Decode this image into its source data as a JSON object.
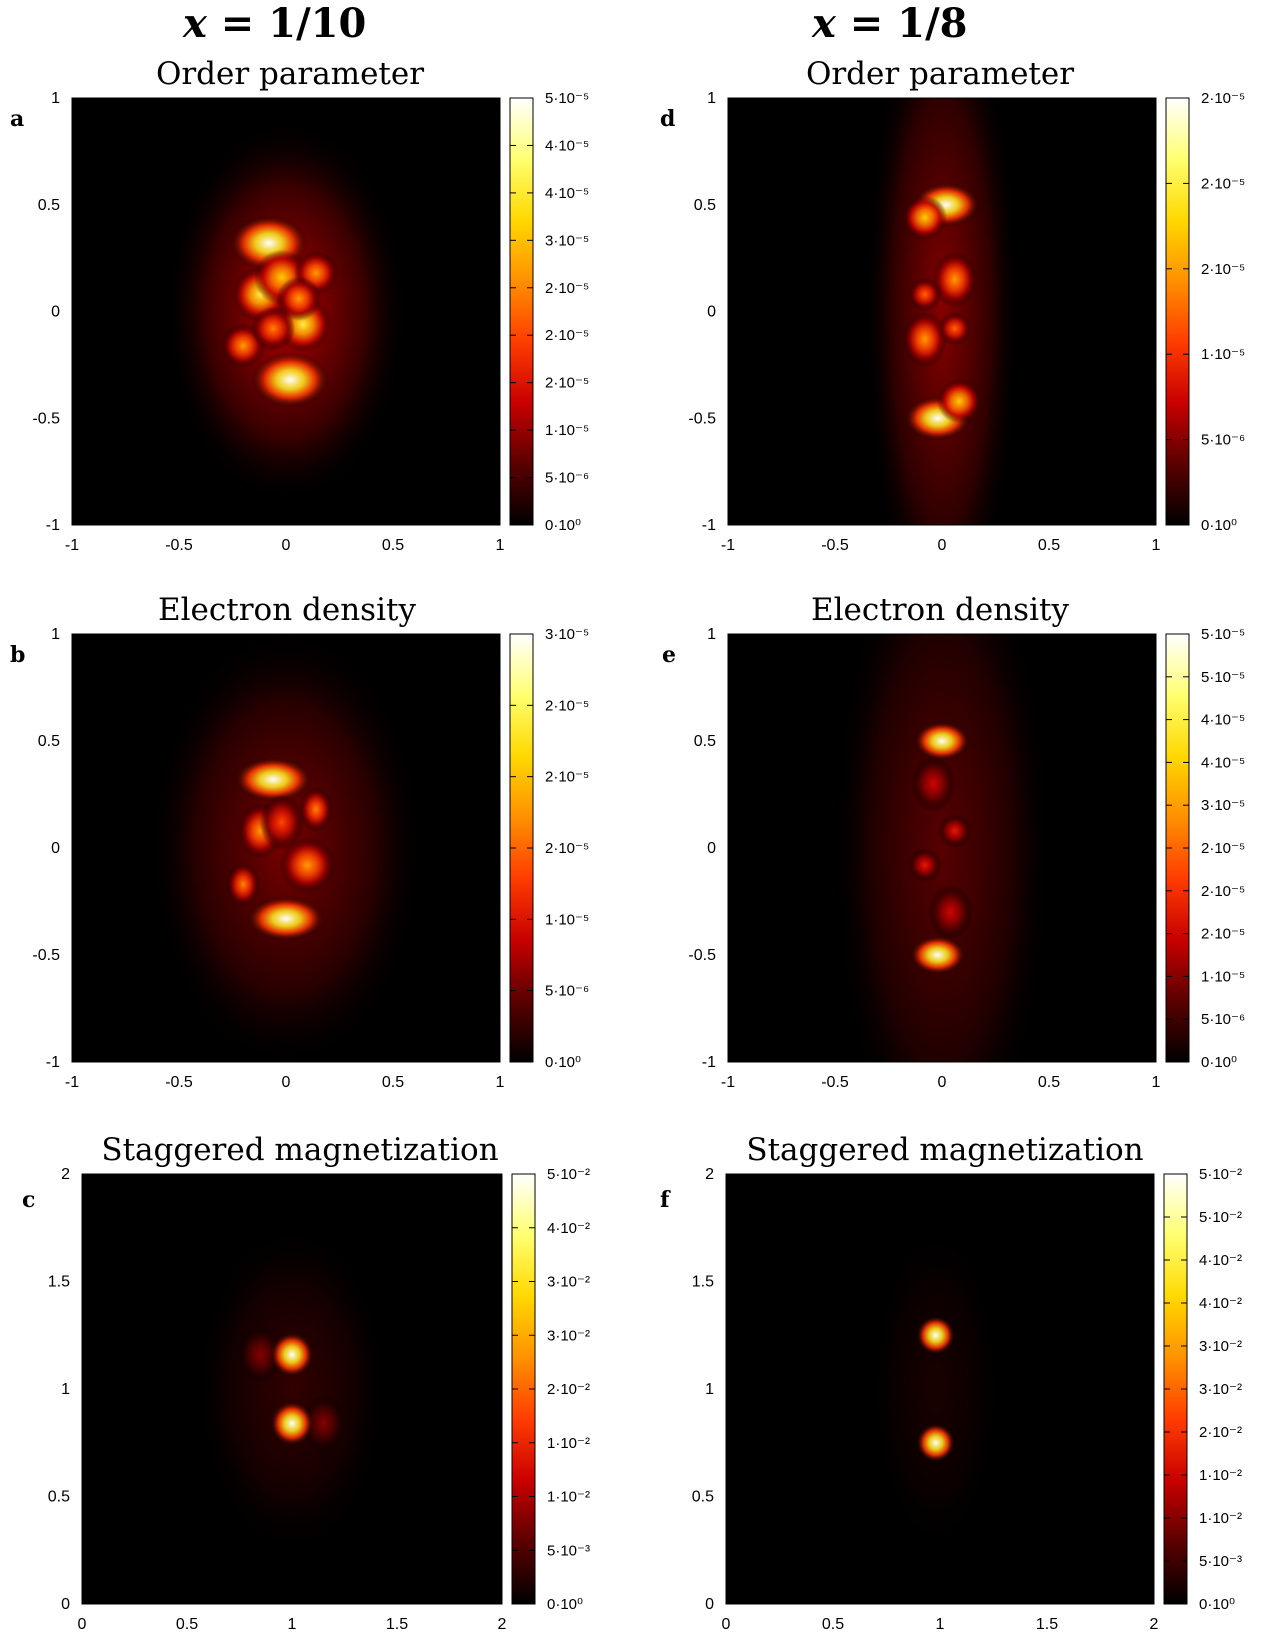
{
  "columns": [
    {
      "var": "x",
      "eq": " = ",
      "value": "1/10"
    },
    {
      "var": "x",
      "eq": " = ",
      "value": "1/8"
    }
  ],
  "colormap": [
    "#000000",
    "#5a0000",
    "#c80000",
    "#ff3c00",
    "#ff9000",
    "#ffd800",
    "#ffff70",
    "#ffffff"
  ],
  "chart_data": [
    {
      "type": "heatmap",
      "panel_label": "a",
      "title": "Order parameter",
      "xlim": [
        -1,
        1
      ],
      "ylim": [
        -1,
        1
      ],
      "xticks": [
        "-1",
        "-0.5",
        "0",
        "0.5",
        "1"
      ],
      "yticks": [
        "-1",
        "-0.5",
        "0",
        "0.5",
        "1"
      ],
      "colorbar": {
        "ticks": [
          "0·10⁰",
          "5·10⁻⁶",
          "1·10⁻⁵",
          "2·10⁻⁵",
          "2·10⁻⁵",
          "2·10⁻⁵",
          "3·10⁻⁵",
          "4·10⁻⁵",
          "4·10⁻⁵",
          "5·10⁻⁵"
        ],
        "range": [
          0,
          5e-05
        ]
      },
      "blobs": [
        {
          "x": -0.08,
          "y": 0.32,
          "v": 1.0,
          "sx": 0.07,
          "sy": 0.05
        },
        {
          "x": 0.02,
          "y": -0.32,
          "v": 1.0,
          "sx": 0.07,
          "sy": 0.05
        },
        {
          "x": -0.12,
          "y": 0.08,
          "v": 0.8,
          "sx": 0.05,
          "sy": 0.05
        },
        {
          "x": 0.08,
          "y": -0.06,
          "v": 0.8,
          "sx": 0.05,
          "sy": 0.05
        },
        {
          "x": -0.02,
          "y": 0.16,
          "v": 0.7,
          "sx": 0.05,
          "sy": 0.05
        },
        {
          "x": 0.14,
          "y": 0.18,
          "v": 0.6,
          "sx": 0.04,
          "sy": 0.04
        },
        {
          "x": -0.2,
          "y": -0.16,
          "v": 0.6,
          "sx": 0.04,
          "sy": 0.04
        },
        {
          "x": 0.06,
          "y": 0.06,
          "v": 0.6,
          "sx": 0.04,
          "sy": 0.04
        },
        {
          "x": -0.06,
          "y": -0.08,
          "v": 0.55,
          "sx": 0.04,
          "sy": 0.04
        },
        {
          "x": 0.0,
          "y": 0.0,
          "v": 0.25,
          "sx": 0.22,
          "sy": 0.35
        }
      ]
    },
    {
      "type": "heatmap",
      "panel_label": "b",
      "title": "Electron density",
      "xlim": [
        -1,
        1
      ],
      "ylim": [
        -1,
        1
      ],
      "xticks": [
        "-1",
        "-0.5",
        "0",
        "0.5",
        "1"
      ],
      "yticks": [
        "-1",
        "-0.5",
        "0",
        "0.5",
        "1"
      ],
      "colorbar": {
        "ticks": [
          "0·10⁰",
          "5·10⁻⁶",
          "1·10⁻⁵",
          "2·10⁻⁵",
          "2·10⁻⁵",
          "2·10⁻⁵",
          "3·10⁻⁵"
        ],
        "range": [
          0,
          3e-05
        ]
      },
      "blobs": [
        {
          "x": -0.06,
          "y": 0.32,
          "v": 1.0,
          "sx": 0.07,
          "sy": 0.04
        },
        {
          "x": 0.0,
          "y": -0.33,
          "v": 1.0,
          "sx": 0.07,
          "sy": 0.04
        },
        {
          "x": -0.12,
          "y": 0.08,
          "v": 0.6,
          "sx": 0.04,
          "sy": 0.05
        },
        {
          "x": 0.1,
          "y": -0.08,
          "v": 0.6,
          "sx": 0.05,
          "sy": 0.05
        },
        {
          "x": 0.14,
          "y": 0.18,
          "v": 0.55,
          "sx": 0.03,
          "sy": 0.04
        },
        {
          "x": -0.2,
          "y": -0.17,
          "v": 0.55,
          "sx": 0.03,
          "sy": 0.04
        },
        {
          "x": -0.02,
          "y": 0.12,
          "v": 0.45,
          "sx": 0.04,
          "sy": 0.05
        },
        {
          "x": 0.0,
          "y": 0.0,
          "v": 0.18,
          "sx": 0.25,
          "sy": 0.4
        }
      ]
    },
    {
      "type": "heatmap",
      "panel_label": "c",
      "title": "Staggered magnetization",
      "xlim": [
        0,
        2
      ],
      "ylim": [
        0,
        2
      ],
      "xticks": [
        "0",
        "0.5",
        "1",
        "1.5",
        "2"
      ],
      "yticks": [
        "0",
        "0.5",
        "1",
        "1.5",
        "2"
      ],
      "colorbar": {
        "ticks": [
          "0·10⁰",
          "5·10⁻³",
          "1·10⁻²",
          "1·10⁻²",
          "2·10⁻²",
          "3·10⁻²",
          "3·10⁻²",
          "4·10⁻²",
          "5·10⁻²"
        ],
        "range": [
          0,
          0.05
        ]
      },
      "blobs": [
        {
          "x": 1.0,
          "y": 1.16,
          "v": 1.0,
          "sx": 0.04,
          "sy": 0.04
        },
        {
          "x": 1.0,
          "y": 0.84,
          "v": 1.0,
          "sx": 0.04,
          "sy": 0.04
        },
        {
          "x": 0.85,
          "y": 1.16,
          "v": 0.2,
          "sx": 0.04,
          "sy": 0.05
        },
        {
          "x": 1.15,
          "y": 0.84,
          "v": 0.2,
          "sx": 0.04,
          "sy": 0.05
        },
        {
          "x": 1.0,
          "y": 1.0,
          "v": 0.08,
          "sx": 0.18,
          "sy": 0.3
        }
      ]
    },
    {
      "type": "heatmap",
      "panel_label": "d",
      "title": "Order parameter",
      "xlim": [
        -1,
        1
      ],
      "ylim": [
        -1,
        1
      ],
      "xticks": [
        "-1",
        "-0.5",
        "0",
        "0.5",
        "1"
      ],
      "yticks": [
        "-1",
        "-0.5",
        "0",
        "0.5",
        "1"
      ],
      "colorbar": {
        "ticks": [
          "0·10⁰",
          "5·10⁻⁶",
          "1·10⁻⁵",
          "2·10⁻⁵",
          "2·10⁻⁵",
          "2·10⁻⁵"
        ],
        "range": [
          0,
          2e-05
        ]
      },
      "blobs": [
        {
          "x": 0.02,
          "y": 0.5,
          "v": 1.0,
          "sx": 0.06,
          "sy": 0.04
        },
        {
          "x": -0.02,
          "y": -0.5,
          "v": 1.0,
          "sx": 0.06,
          "sy": 0.04
        },
        {
          "x": -0.08,
          "y": 0.44,
          "v": 0.7,
          "sx": 0.04,
          "sy": 0.04
        },
        {
          "x": 0.08,
          "y": -0.42,
          "v": 0.7,
          "sx": 0.04,
          "sy": 0.04
        },
        {
          "x": 0.06,
          "y": 0.15,
          "v": 0.6,
          "sx": 0.04,
          "sy": 0.05
        },
        {
          "x": -0.08,
          "y": -0.13,
          "v": 0.6,
          "sx": 0.04,
          "sy": 0.05
        },
        {
          "x": -0.08,
          "y": 0.08,
          "v": 0.5,
          "sx": 0.03,
          "sy": 0.03
        },
        {
          "x": 0.06,
          "y": -0.08,
          "v": 0.5,
          "sx": 0.03,
          "sy": 0.03
        },
        {
          "x": 0.0,
          "y": 0.0,
          "v": 0.2,
          "sx": 0.14,
          "sy": 0.6
        }
      ]
    },
    {
      "type": "heatmap",
      "panel_label": "e",
      "title": "Electron density",
      "xlim": [
        -1,
        1
      ],
      "ylim": [
        -1,
        1
      ],
      "xticks": [
        "-1",
        "-0.5",
        "0",
        "0.5",
        "1"
      ],
      "yticks": [
        "-1",
        "-0.5",
        "0",
        "0.5",
        "1"
      ],
      "colorbar": {
        "ticks": [
          "0·10⁰",
          "5·10⁻⁶",
          "1·10⁻⁵",
          "2·10⁻⁵",
          "2·10⁻⁵",
          "2·10⁻⁵",
          "3·10⁻⁵",
          "4·10⁻⁵",
          "4·10⁻⁵",
          "5·10⁻⁵",
          "5·10⁻⁵"
        ],
        "range": [
          0,
          5e-05
        ]
      },
      "blobs": [
        {
          "x": 0.0,
          "y": 0.5,
          "v": 1.0,
          "sx": 0.05,
          "sy": 0.035
        },
        {
          "x": -0.02,
          "y": -0.5,
          "v": 1.0,
          "sx": 0.05,
          "sy": 0.035
        },
        {
          "x": 0.06,
          "y": 0.08,
          "v": 0.35,
          "sx": 0.03,
          "sy": 0.03
        },
        {
          "x": -0.08,
          "y": -0.08,
          "v": 0.35,
          "sx": 0.03,
          "sy": 0.03
        },
        {
          "x": -0.04,
          "y": 0.3,
          "v": 0.3,
          "sx": 0.04,
          "sy": 0.05
        },
        {
          "x": 0.04,
          "y": -0.3,
          "v": 0.3,
          "sx": 0.04,
          "sy": 0.05
        },
        {
          "x": 0.0,
          "y": 0.0,
          "v": 0.14,
          "sx": 0.2,
          "sy": 0.6
        }
      ]
    },
    {
      "type": "heatmap",
      "panel_label": "f",
      "title": "Staggered magnetization",
      "xlim": [
        0,
        2
      ],
      "ylim": [
        0,
        2
      ],
      "xticks": [
        "0",
        "0.5",
        "1",
        "1.5",
        "2"
      ],
      "yticks": [
        "0",
        "0.5",
        "1",
        "1.5",
        "2"
      ],
      "colorbar": {
        "ticks": [
          "0·10⁰",
          "5·10⁻³",
          "1·10⁻²",
          "1·10⁻²",
          "2·10⁻²",
          "3·10⁻²",
          "3·10⁻²",
          "4·10⁻²",
          "4·10⁻²",
          "5·10⁻²",
          "5·10⁻²"
        ],
        "range": [
          0,
          0.05
        ]
      },
      "blobs": [
        {
          "x": 0.98,
          "y": 1.25,
          "v": 1.0,
          "sx": 0.035,
          "sy": 0.035
        },
        {
          "x": 0.98,
          "y": 0.75,
          "v": 1.0,
          "sx": 0.035,
          "sy": 0.035
        },
        {
          "x": 0.98,
          "y": 1.0,
          "v": 0.04,
          "sx": 0.12,
          "sy": 0.3
        }
      ]
    }
  ]
}
